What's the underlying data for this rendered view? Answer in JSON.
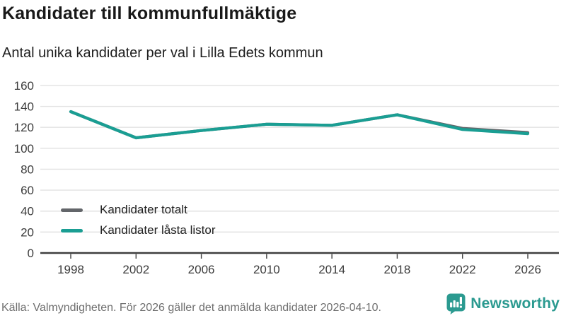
{
  "header": {
    "title": "Kandidater till kommunfullmäktige",
    "subtitle": "Antal unika kandidater per val i Lilla Edets kommun"
  },
  "footer": {
    "source": "Källa: Valmyndigheten. För 2026 gäller det anmälda kandidater 2026-04-10.",
    "brand": "Newsworthy"
  },
  "colors": {
    "accent_teal": "#1a9e93",
    "series_gray": "#63666a",
    "grid": "#e2e2e2",
    "axis": "#3f3f3f",
    "tick_label": "#3c3c3c",
    "text_dark": "#191919",
    "text_muted": "#6f6f6f",
    "brand_teal": "#2b9a90"
  },
  "chart_data": {
    "type": "line",
    "title": "Kandidater till kommunfullmäktige",
    "subtitle": "Antal unika kandidater per val i Lilla Edets kommun",
    "categories": [
      1998,
      2002,
      2006,
      2010,
      2014,
      2018,
      2022,
      2026
    ],
    "series": [
      {
        "name": "Kandidater totalt",
        "color": "#63666a",
        "values": [
          135,
          110,
          117,
          123,
          122,
          132,
          119,
          115
        ]
      },
      {
        "name": "Kandidater låsta listor",
        "color": "#1a9e93",
        "values": [
          135,
          110,
          117,
          123,
          122,
          132,
          118,
          114
        ]
      }
    ],
    "xlabel": "",
    "ylabel": "",
    "ylim": [
      0,
      160
    ],
    "yticks": [
      0,
      20,
      40,
      60,
      80,
      100,
      120,
      140,
      160
    ],
    "grid": true,
    "legend_position": "inside-bottom-left"
  }
}
